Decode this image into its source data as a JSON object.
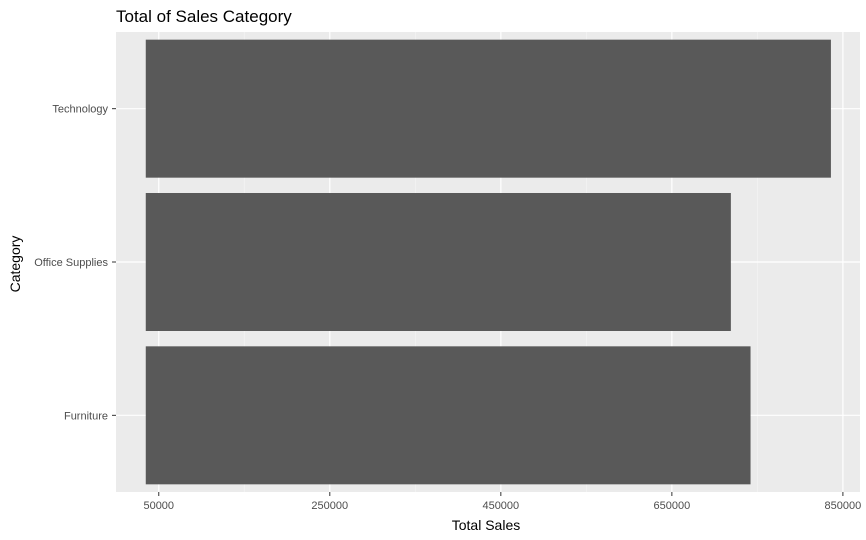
{
  "chart_data": {
    "type": "bar",
    "orientation": "horizontal",
    "title": "Total of Sales Category",
    "xlabel": "Total Sales",
    "ylabel": "Category",
    "categories": [
      "Furniture",
      "Office Supplies",
      "Technology"
    ],
    "values": [
      742000,
      719000,
      836000
    ],
    "x_ticks": [
      50000,
      250000,
      450000,
      650000,
      850000
    ],
    "x_tick_labels": [
      "50000",
      "250000",
      "450000",
      "650000",
      "850000"
    ],
    "xlim": [
      0,
      870000
    ],
    "grid": true,
    "colors": {
      "panel_background": "#ebebeb",
      "bar_fill": "#595959",
      "grid_major": "#ffffff",
      "grid_minor": "#f5f5f5",
      "tick_text": "#4d4d4d",
      "text": "#000000"
    }
  }
}
